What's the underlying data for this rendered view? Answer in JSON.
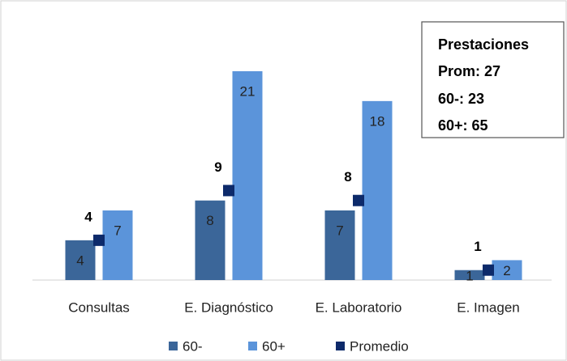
{
  "chart_data": {
    "type": "bar",
    "categories": [
      "Consultas",
      "E. Diagnóstico",
      "E. Laboratorio",
      "E. Imagen"
    ],
    "series": [
      {
        "name": "60-",
        "color": "#3b6699",
        "values": [
          4,
          8,
          7,
          1
        ]
      },
      {
        "name": "60+",
        "color": "#5b94da",
        "values": [
          7,
          21,
          18,
          2
        ]
      },
      {
        "name": "Promedio",
        "color": "#0d2a6a",
        "values": [
          4,
          9,
          8,
          1
        ],
        "marker": "square"
      }
    ],
    "annotation": [
      "Prestaciones",
      "Prom: 27",
      "60-: 23",
      "60+: 65"
    ]
  }
}
